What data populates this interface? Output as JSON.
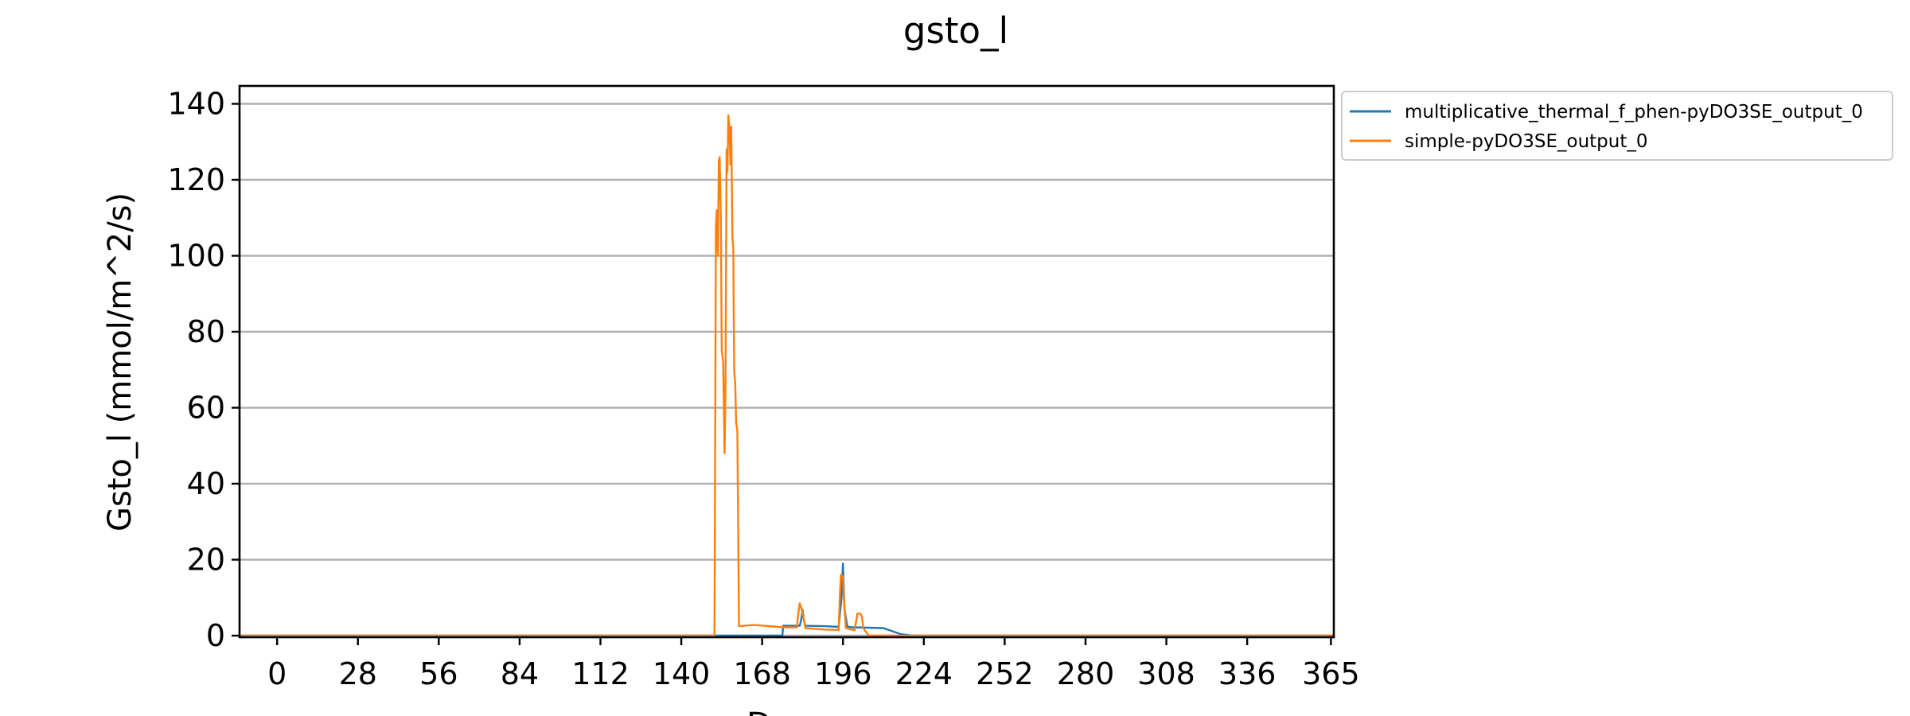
{
  "chart_data": {
    "type": "line",
    "title": "gsto_l",
    "xlabel": "Days",
    "ylabel": "Gsto_l (mmol/m^2/s)",
    "xlim": [
      -13,
      366
    ],
    "ylim": [
      0,
      145
    ],
    "xticks": [
      0,
      28,
      56,
      84,
      112,
      140,
      168,
      196,
      224,
      252,
      280,
      308,
      336,
      365
    ],
    "yticks": [
      0,
      20,
      40,
      60,
      80,
      100,
      120,
      140
    ],
    "grid": "horizontal",
    "legend_position": "outside-top-right",
    "series": [
      {
        "name": "multiplicative_thermal_f_phen-pyDO3SE_output_0",
        "color": "#1f77b4",
        "x": [
          -13,
          175,
          175.3,
          181,
          181.5,
          182,
          182.5,
          183,
          190,
          194.5,
          195.5,
          196,
          196.5,
          197.5,
          199,
          210,
          216,
          220,
          366
        ],
        "y": [
          0,
          0,
          2.6,
          2.6,
          4,
          6.8,
          3.8,
          2.6,
          2.5,
          2.3,
          10,
          19,
          7,
          2.4,
          2.2,
          2,
          0.4,
          0,
          0
        ]
      },
      {
        "name": "simple-pyDO3SE_output_0",
        "color": "#ff7f0e",
        "x": [
          -13,
          151.5,
          152,
          152.3,
          152.7,
          153,
          153.3,
          153.7,
          154,
          154.5,
          155,
          155.3,
          155.7,
          156,
          156.3,
          156.7,
          157,
          157.3,
          157.7,
          158,
          158.3,
          158.7,
          159,
          159.4,
          160,
          165,
          167,
          172,
          175,
          180,
          180.5,
          181,
          181.5,
          182,
          183,
          186,
          190,
          194.5,
          195,
          195.3,
          196,
          196.3,
          197,
          200,
          200.5,
          201,
          202,
          202.6,
          203,
          204,
          204.5,
          205,
          366
        ],
        "y": [
          0,
          0,
          108,
          112,
          100,
          125,
          126,
          110,
          75,
          72,
          48,
          65,
          128,
          122,
          137,
          133,
          124,
          134,
          105,
          102,
          70,
          66,
          56,
          54,
          2.5,
          2.8,
          2.7,
          2.4,
          2.2,
          2.2,
          5.5,
          8.5,
          7.5,
          6,
          2,
          1.8,
          1.6,
          1.5,
          12,
          16,
          15.5,
          10,
          2,
          1.4,
          3.5,
          5.8,
          5.8,
          5,
          2,
          1,
          0.4,
          0,
          0
        ]
      }
    ]
  }
}
